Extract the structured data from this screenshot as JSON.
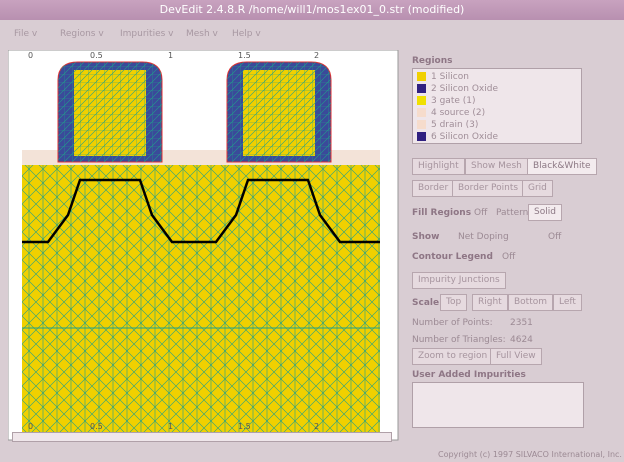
{
  "window": {
    "title": "DevEdit 2.4.8.R /home/will1/mos1ex01_0.str (modified)"
  },
  "menu": [
    "File v",
    "Regions v",
    "Impurities v",
    "Mesh v",
    "Help v"
  ],
  "canvas": {
    "top_scale": [
      "0",
      "0.5",
      "1",
      "1.5",
      "2"
    ],
    "bottom_scale": [
      "0",
      "0.5",
      "1",
      "1.5",
      "2"
    ]
  },
  "panel": {
    "regions_label": "Regions",
    "regions": [
      "1 Silicon",
      "2 Silicon Oxide",
      "3 gate (1)",
      "4 source (2)",
      "5 drain (3)",
      "6 Silicon Oxide"
    ],
    "view_buttons": [
      "Highlight",
      "Show Mesh",
      "Black&White"
    ],
    "border_buttons": [
      "Border",
      "Border Points",
      "Grid"
    ],
    "fill_label": "Fill Regions",
    "fill_options": [
      "Off",
      "Pattern",
      "Solid"
    ],
    "show_label": "Show",
    "show_value": "Net Doping",
    "show_off": "Off",
    "contour_label": "Contour Legend",
    "contour_off": "Off",
    "junctions_button": "Impurity Junctions",
    "scale_label": "Scale",
    "scale_options": [
      "Top",
      "Right",
      "Bottom",
      "Left"
    ],
    "points_label": "Number of Points:",
    "points_value": "2351",
    "triangles_label": "Number of Triangles:",
    "triangles_value": "4624",
    "zoom_button": "Zoom to region",
    "full_view_button": "Full View",
    "impurities_label": "User Added Impurities"
  },
  "footer": "Copyright (c) 1997 SILVACO International, Inc."
}
